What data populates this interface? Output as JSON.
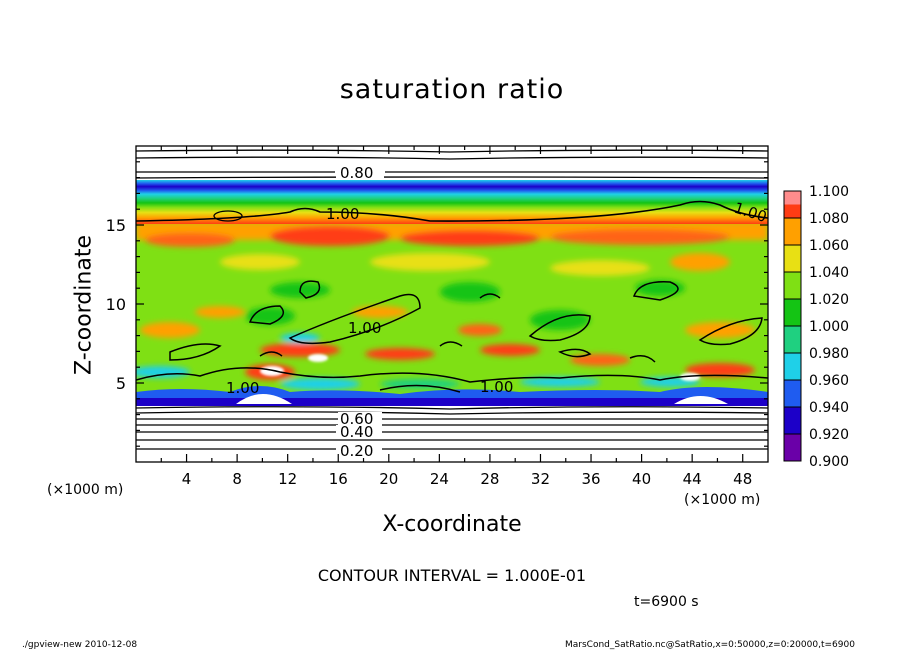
{
  "chart_data": {
    "type": "heatmap",
    "title": "saturation ratio",
    "xlabel": "X-coordinate",
    "ylabel": "Z-coordinate",
    "x_unit_label": "(×1000 m)",
    "z_unit_label": "(×1000 m)",
    "xlim": [
      0,
      50
    ],
    "ylim": [
      0,
      20
    ],
    "x_ticks": [
      "4",
      "8",
      "12",
      "16",
      "20",
      "24",
      "28",
      "32",
      "36",
      "40",
      "44",
      "48"
    ],
    "y_ticks": [
      "5",
      "10",
      "15"
    ],
    "colorbar": {
      "levels": [
        "0.900",
        "0.920",
        "0.940",
        "0.960",
        "0.980",
        "1.000",
        "1.020",
        "1.040",
        "1.060",
        "1.080",
        "1.100"
      ],
      "colors": [
        "#6a00a8",
        "#1c00c8",
        "#1f5cf0",
        "#1fd0e8",
        "#1fd080",
        "#14c414",
        "#7fe014",
        "#e8e014",
        "#ffa000",
        "#ff3c14",
        "#ff8c8c"
      ]
    },
    "contour_labels": [
      "0.80",
      "1.00",
      "1.00",
      "1.00",
      "1.00",
      "1.00",
      "0.60",
      "0.40",
      "0.20"
    ],
    "contour_interval_text": "CONTOUR INTERVAL = 1.000E-01",
    "time_text": "t=6900 s"
  },
  "footer": {
    "left": "./gpview-new  2010-12-08",
    "right": "MarsCond_SatRatio.nc@SatRatio,x=0:50000,z=0:20000,t=6900"
  }
}
